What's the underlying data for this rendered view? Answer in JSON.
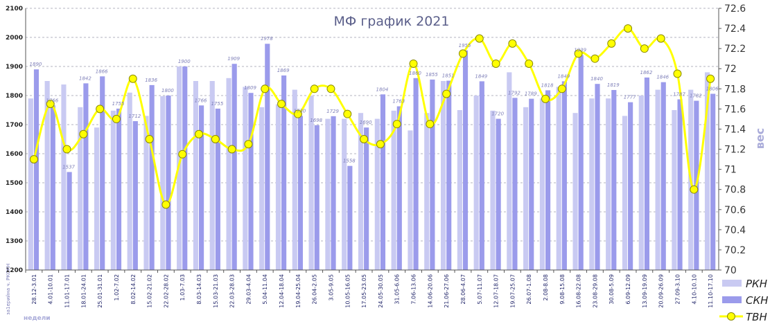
{
  "chart_data": {
    "type": "bar",
    "title": "МФ график 2021",
    "y2label": "вес",
    "xlabel": "недели",
    "side_note": "за1ерийна ч. РКСКН",
    "ylim": [
      1200,
      2100
    ],
    "yticks": [
      "1200",
      "1300",
      "1400",
      "1500",
      "1600",
      "1700",
      "1800",
      "1900",
      "2000",
      "2100"
    ],
    "y2lim": [
      70,
      72.6
    ],
    "y2ticks": [
      "70",
      "70.2",
      "70.4",
      "70.6",
      "70.8",
      "71",
      "71.2",
      "71.4",
      "71.6",
      "71.8",
      "72",
      "72.2",
      "72.4",
      "72.6"
    ],
    "grid": true,
    "legend_position": "bottom-right",
    "colors": {
      "rkn": "#c9caf2",
      "skn": "#9b9beb",
      "tvn": "#ffff00",
      "tvn_marker_edge": "#8a8a00",
      "grid": "#9a9aaa"
    },
    "categories": [
      "28.12-3.01",
      "4.01-10.01",
      "11.01-17.01",
      "18.01-24.01",
      "25.01-31.01",
      "1.02-7.02",
      "8.02-14.02",
      "15.02-21.02",
      "22.02-28.02",
      "1.03-7.03",
      "8.03-14.03",
      "15.03-21.03",
      "22.03-28.03",
      "29.03-4.04",
      "5.04-11.04",
      "12.04-18.04",
      "19.04-25.04",
      "26.04-2.05",
      "3.05-9.05",
      "10.05-16.05",
      "17.05-23.05",
      "24.05-30.05",
      "31.05-6.06",
      "7.06-13.06",
      "14.06-20.06",
      "21.06-27.06",
      "28.06-4.07",
      "5.07-11.07",
      "12.07-18.07",
      "19.07-25.07",
      "26.07-1.08",
      "2.08-8.08",
      "9.08-15.08",
      "16.08-22.08",
      "23.08-29.08",
      "30.08-5.09",
      "6.09-12.09",
      "13.09-19.09",
      "20.09-26.09",
      "27.09-3.10",
      "4.10-10.10",
      "11.10-17.10"
    ],
    "series": [
      {
        "name": "РКН",
        "axis": "left",
        "kind": "bar",
        "values": [
          1790,
          1850,
          1838,
          1760,
          1690,
          1748,
          1810,
          1730,
          1798,
          1900,
          1850,
          1850,
          1860,
          1830,
          1760,
          1770,
          1820,
          1800,
          1720,
          1720,
          1740,
          1720,
          1748,
          1680,
          1740,
          1850,
          1750,
          1800,
          1748,
          1880,
          1760,
          1790,
          1830,
          1740,
          1790,
          1790,
          1730,
          1800,
          1820,
          1750,
          1820,
          1880
        ]
      },
      {
        "name": "СКН",
        "axis": "left",
        "kind": "bar",
        "values": [
          1890,
          1766,
          1537,
          1842,
          1866,
          1755,
          1712,
          1836,
          1800,
          1900,
          1766,
          1755,
          1909,
          1809,
          1978,
          1869,
          1730,
          1698,
          1729,
          1558,
          1690,
          1804,
          1763,
          1860,
          1855,
          1851,
          1955,
          1849,
          1720,
          1792,
          1789,
          1818,
          1849,
          1939,
          1840,
          1819,
          1777,
          1862,
          1846,
          1787,
          1782,
          1806
        ]
      },
      {
        "name": "ТВН",
        "axis": "right",
        "kind": "line",
        "values": [
          71.1,
          71.65,
          71.2,
          71.35,
          71.6,
          71.5,
          71.9,
          71.3,
          70.65,
          71.15,
          71.35,
          71.3,
          71.2,
          71.25,
          71.8,
          71.65,
          71.55,
          71.8,
          71.8,
          71.55,
          71.3,
          71.25,
          71.45,
          72.05,
          71.45,
          71.75,
          72.15,
          72.3,
          72.05,
          72.25,
          72.05,
          71.7,
          71.8,
          72.15,
          72.1,
          72.25,
          72.4,
          72.2,
          72.3,
          71.95,
          70.8,
          71.9
        ]
      }
    ],
    "data_labels": [
      "1890",
      "1766",
      "1537",
      "1842",
      "1866",
      "1755",
      "1712",
      "1836",
      "1800",
      "1900",
      "1766",
      "1755",
      "1909",
      "1809",
      "1978",
      "1869",
      "1730",
      "1698",
      "1729",
      "1558",
      "1690",
      "1804",
      "1763",
      "1860",
      "1855",
      "1851",
      "1955",
      "1849",
      "1720",
      "1792",
      "1789",
      "1818",
      "1849",
      "1939",
      "1840",
      "1819",
      "1777",
      "1862",
      "1846",
      "1787",
      "1782",
      "1806"
    ]
  }
}
